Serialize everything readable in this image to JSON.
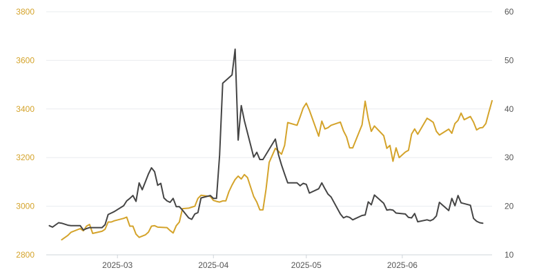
{
  "chart_data": {
    "type": "line",
    "title": "",
    "xlabel": "",
    "ylabel": "",
    "grid": true,
    "legend": "none",
    "x_ticks": [
      "2025-03",
      "2025-04",
      "2025-05",
      "2025-06"
    ],
    "y_left": {
      "min": 2800,
      "max": 3800,
      "ticks": [
        "2800",
        "3000",
        "3200",
        "3400",
        "3600",
        "3800"
      ]
    },
    "y_right": {
      "min": 10,
      "max": 60,
      "ticks": [
        "10",
        "20",
        "30",
        "40",
        "50",
        "60"
      ]
    },
    "x_range": [
      "2025-02-06",
      "2025-06-30"
    ],
    "series": [
      {
        "axis": "left",
        "color": "#d4a32a",
        "points": [
          [
            "2025-02-11",
            2862
          ],
          [
            "2025-02-13",
            2880
          ],
          [
            "2025-02-14",
            2893
          ],
          [
            "2025-02-17",
            2908
          ],
          [
            "2025-02-18",
            2899
          ],
          [
            "2025-02-19",
            2918
          ],
          [
            "2025-02-20",
            2925
          ],
          [
            "2025-02-21",
            2888
          ],
          [
            "2025-02-24",
            2897
          ],
          [
            "2025-02-25",
            2905
          ],
          [
            "2025-02-26",
            2935
          ],
          [
            "2025-02-27",
            2935
          ],
          [
            "2025-02-28",
            2940
          ],
          [
            "2025-03-03",
            2950
          ],
          [
            "2025-03-04",
            2955
          ],
          [
            "2025-03-05",
            2918
          ],
          [
            "2025-03-06",
            2918
          ],
          [
            "2025-03-07",
            2885
          ],
          [
            "2025-03-08",
            2872
          ],
          [
            "2025-03-10",
            2882
          ],
          [
            "2025-03-11",
            2893
          ],
          [
            "2025-03-12",
            2918
          ],
          [
            "2025-03-13",
            2920
          ],
          [
            "2025-03-14",
            2914
          ],
          [
            "2025-03-17",
            2912
          ],
          [
            "2025-03-18",
            2900
          ],
          [
            "2025-03-19",
            2890
          ],
          [
            "2025-03-20",
            2920
          ],
          [
            "2025-03-21",
            2935
          ],
          [
            "2025-03-22",
            2990
          ],
          [
            "2025-03-24",
            2992
          ],
          [
            "2025-03-25",
            2996
          ],
          [
            "2025-03-26",
            3000
          ],
          [
            "2025-03-27",
            3032
          ],
          [
            "2025-03-28",
            3045
          ],
          [
            "2025-03-31",
            3040
          ],
          [
            "2025-04-01",
            3024
          ],
          [
            "2025-04-02",
            3020
          ],
          [
            "2025-04-03",
            3017
          ],
          [
            "2025-04-04",
            3022
          ],
          [
            "2025-04-05",
            3022
          ],
          [
            "2025-04-06",
            3060
          ],
          [
            "2025-04-07",
            3087
          ],
          [
            "2025-04-08",
            3110
          ],
          [
            "2025-04-09",
            3124
          ],
          [
            "2025-04-10",
            3112
          ],
          [
            "2025-04-11",
            3130
          ],
          [
            "2025-04-12",
            3118
          ],
          [
            "2025-04-14",
            3040
          ],
          [
            "2025-04-15",
            3017
          ],
          [
            "2025-04-16",
            2985
          ],
          [
            "2025-04-17",
            2985
          ],
          [
            "2025-04-18",
            3070
          ],
          [
            "2025-04-19",
            3180
          ],
          [
            "2025-04-21",
            3238
          ],
          [
            "2025-04-22",
            3226
          ],
          [
            "2025-04-23",
            3214
          ],
          [
            "2025-04-24",
            3250
          ],
          [
            "2025-04-25",
            3344
          ],
          [
            "2025-04-28",
            3333
          ],
          [
            "2025-04-29",
            3368
          ],
          [
            "2025-04-30",
            3404
          ],
          [
            "2025-05-01",
            3424
          ],
          [
            "2025-05-02",
            3395
          ],
          [
            "2025-05-05",
            3288
          ],
          [
            "2025-05-06",
            3350
          ],
          [
            "2025-05-07",
            3318
          ],
          [
            "2025-05-08",
            3323
          ],
          [
            "2025-05-09",
            3333
          ],
          [
            "2025-05-12",
            3346
          ],
          [
            "2025-05-13",
            3310
          ],
          [
            "2025-05-14",
            3285
          ],
          [
            "2025-05-15",
            3240
          ],
          [
            "2025-05-16",
            3240
          ],
          [
            "2025-05-19",
            3335
          ],
          [
            "2025-05-20",
            3432
          ],
          [
            "2025-05-21",
            3360
          ],
          [
            "2025-05-22",
            3308
          ],
          [
            "2025-05-23",
            3330
          ],
          [
            "2025-05-26",
            3290
          ],
          [
            "2025-05-27",
            3238
          ],
          [
            "2025-05-28",
            3250
          ],
          [
            "2025-05-29",
            3185
          ],
          [
            "2025-05-30",
            3240
          ],
          [
            "2025-05-31",
            3200
          ],
          [
            "2025-06-02",
            3223
          ],
          [
            "2025-06-03",
            3230
          ],
          [
            "2025-06-04",
            3297
          ],
          [
            "2025-06-05",
            3318
          ],
          [
            "2025-06-06",
            3296
          ],
          [
            "2025-06-09",
            3362
          ],
          [
            "2025-06-10",
            3354
          ],
          [
            "2025-06-11",
            3345
          ],
          [
            "2025-06-12",
            3308
          ],
          [
            "2025-06-13",
            3293
          ],
          [
            "2025-06-16",
            3317
          ],
          [
            "2025-06-17",
            3300
          ],
          [
            "2025-06-18",
            3340
          ],
          [
            "2025-06-19",
            3353
          ],
          [
            "2025-06-20",
            3383
          ],
          [
            "2025-06-21",
            3356
          ],
          [
            "2025-06-23",
            3369
          ],
          [
            "2025-06-24",
            3346
          ],
          [
            "2025-06-25",
            3314
          ],
          [
            "2025-06-26",
            3322
          ],
          [
            "2025-06-27",
            3324
          ],
          [
            "2025-06-28",
            3340
          ],
          [
            "2025-06-29",
            3388
          ],
          [
            "2025-06-30",
            3434
          ]
        ]
      },
      {
        "axis": "right",
        "color": "#444444",
        "points": [
          [
            "2025-02-07",
            16.0
          ],
          [
            "2025-02-08",
            15.7
          ],
          [
            "2025-02-10",
            16.6
          ],
          [
            "2025-02-11",
            16.5
          ],
          [
            "2025-02-13",
            16.1
          ],
          [
            "2025-02-14",
            16.0
          ],
          [
            "2025-02-17",
            16.0
          ],
          [
            "2025-02-18",
            15.1
          ],
          [
            "2025-02-19",
            15.4
          ],
          [
            "2025-02-20",
            15.6
          ],
          [
            "2025-02-21",
            15.6
          ],
          [
            "2025-02-24",
            15.6
          ],
          [
            "2025-02-25",
            16.2
          ],
          [
            "2025-02-26",
            18.3
          ],
          [
            "2025-02-27",
            18.6
          ],
          [
            "2025-02-28",
            18.9
          ],
          [
            "2025-03-03",
            20.1
          ],
          [
            "2025-03-04",
            21.1
          ],
          [
            "2025-03-05",
            21.6
          ],
          [
            "2025-03-06",
            22.2
          ],
          [
            "2025-03-07",
            21.0
          ],
          [
            "2025-03-08",
            24.8
          ],
          [
            "2025-03-09",
            23.4
          ],
          [
            "2025-03-10",
            25.0
          ],
          [
            "2025-03-11",
            26.6
          ],
          [
            "2025-03-12",
            27.9
          ],
          [
            "2025-03-13",
            27.1
          ],
          [
            "2025-03-14",
            24.3
          ],
          [
            "2025-03-15",
            24.7
          ],
          [
            "2025-03-16",
            21.7
          ],
          [
            "2025-03-17",
            21.1
          ],
          [
            "2025-03-18",
            20.8
          ],
          [
            "2025-03-19",
            21.6
          ],
          [
            "2025-03-20",
            19.9
          ],
          [
            "2025-03-21",
            19.9
          ],
          [
            "2025-03-22",
            19.2
          ],
          [
            "2025-03-24",
            17.6
          ],
          [
            "2025-03-25",
            17.3
          ],
          [
            "2025-03-26",
            18.4
          ],
          [
            "2025-03-27",
            18.7
          ],
          [
            "2025-03-28",
            21.7
          ],
          [
            "2025-03-31",
            22.2
          ],
          [
            "2025-04-01",
            21.6
          ],
          [
            "2025-04-02",
            21.6
          ],
          [
            "2025-04-03",
            30.5
          ],
          [
            "2025-04-04",
            45.3
          ],
          [
            "2025-04-07",
            47.0
          ],
          [
            "2025-04-08",
            52.3
          ],
          [
            "2025-04-09",
            33.6
          ],
          [
            "2025-04-10",
            40.7
          ],
          [
            "2025-04-11",
            37.6
          ],
          [
            "2025-04-14",
            30.1
          ],
          [
            "2025-04-15",
            31.1
          ],
          [
            "2025-04-16",
            29.6
          ],
          [
            "2025-04-17",
            29.6
          ],
          [
            "2025-04-21",
            33.8
          ],
          [
            "2025-04-22",
            30.6
          ],
          [
            "2025-04-23",
            28.5
          ],
          [
            "2025-04-24",
            26.6
          ],
          [
            "2025-04-25",
            24.8
          ],
          [
            "2025-04-28",
            24.8
          ],
          [
            "2025-04-29",
            24.2
          ],
          [
            "2025-04-30",
            24.7
          ],
          [
            "2025-05-01",
            24.5
          ],
          [
            "2025-05-02",
            22.7
          ],
          [
            "2025-05-05",
            23.6
          ],
          [
            "2025-05-06",
            24.8
          ],
          [
            "2025-05-07",
            23.6
          ],
          [
            "2025-05-08",
            22.5
          ],
          [
            "2025-05-09",
            21.9
          ],
          [
            "2025-05-12",
            18.4
          ],
          [
            "2025-05-13",
            17.6
          ],
          [
            "2025-05-14",
            17.9
          ],
          [
            "2025-05-15",
            17.7
          ],
          [
            "2025-05-16",
            17.2
          ],
          [
            "2025-05-19",
            18.1
          ],
          [
            "2025-05-20",
            18.2
          ],
          [
            "2025-05-21",
            20.9
          ],
          [
            "2025-05-22",
            20.3
          ],
          [
            "2025-05-23",
            22.3
          ],
          [
            "2025-05-26",
            20.6
          ],
          [
            "2025-05-27",
            19.2
          ],
          [
            "2025-05-28",
            19.3
          ],
          [
            "2025-05-29",
            19.2
          ],
          [
            "2025-05-30",
            18.6
          ],
          [
            "2025-06-02",
            18.4
          ],
          [
            "2025-06-03",
            17.7
          ],
          [
            "2025-06-04",
            17.6
          ],
          [
            "2025-06-05",
            18.5
          ],
          [
            "2025-06-06",
            16.8
          ],
          [
            "2025-06-09",
            17.2
          ],
          [
            "2025-06-10",
            17.0
          ],
          [
            "2025-06-11",
            17.3
          ],
          [
            "2025-06-12",
            18.0
          ],
          [
            "2025-06-13",
            20.8
          ],
          [
            "2025-06-16",
            19.1
          ],
          [
            "2025-06-17",
            21.6
          ],
          [
            "2025-06-18",
            20.1
          ],
          [
            "2025-06-19",
            22.2
          ],
          [
            "2025-06-20",
            20.7
          ],
          [
            "2025-06-23",
            20.2
          ],
          [
            "2025-06-24",
            17.5
          ],
          [
            "2025-06-25",
            16.9
          ],
          [
            "2025-06-26",
            16.6
          ],
          [
            "2025-06-27",
            16.5
          ]
        ]
      }
    ]
  }
}
